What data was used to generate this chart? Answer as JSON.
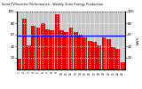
{
  "title": "Weekly Solar Energy Production",
  "subtitle": "Solar PV/Inverter Performance",
  "bar_color": "#dd0000",
  "avg_line_color": "#0000ff",
  "background_color": "#ffffff",
  "plot_bg_color": "#c8c8c8",
  "grid_color": "#ffffff",
  "values": [
    18,
    88,
    42,
    75,
    72,
    80,
    70,
    68,
    95,
    68,
    65,
    72,
    65,
    60,
    55,
    50,
    48,
    42,
    55,
    52,
    38,
    35,
    12
  ],
  "average": 58,
  "ylabel": "kWh",
  "ylim": [
    0,
    100
  ],
  "yticks": [
    20,
    40,
    60,
    80,
    100
  ],
  "ytick_labels": [
    "20",
    "40",
    "60",
    "80",
    "100"
  ],
  "weeks": [
    "1",
    "2",
    "3",
    "4",
    "5",
    "6",
    "7",
    "8",
    "9",
    "10",
    "11",
    "12",
    "13",
    "14",
    "15",
    "16",
    "17",
    "18",
    "19",
    "20",
    "21",
    "22",
    "23"
  ]
}
